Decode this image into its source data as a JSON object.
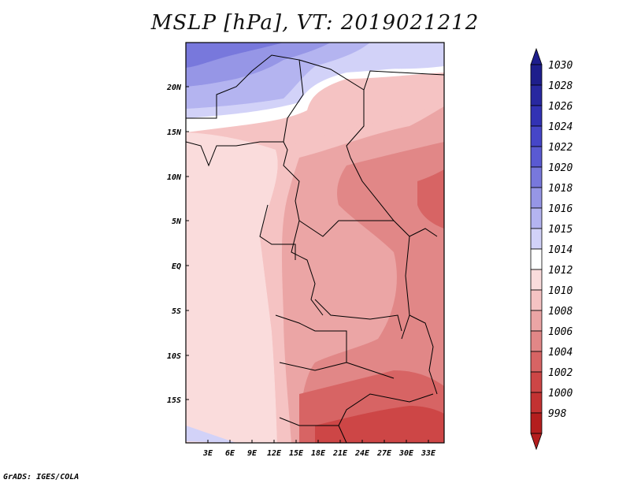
{
  "title": "MSLP [hPa], VT: 2019021212",
  "footer": "GrADS: IGES/COLA",
  "map": {
    "variable": "MSLP",
    "unit": "hPa",
    "valid_time": "2019021212",
    "lat_labels": [
      "20N",
      "15N",
      "10N",
      "5N",
      "EQ",
      "5S",
      "10S",
      "15S"
    ],
    "lon_labels": [
      "3E",
      "6E",
      "9E",
      "12E",
      "15E",
      "18E",
      "21E",
      "24E",
      "27E",
      "30E",
      "33E"
    ]
  },
  "colorbar": {
    "levels": [
      "1030",
      "1028",
      "1026",
      "1024",
      "1022",
      "1020",
      "1018",
      "1016",
      "1015",
      "1014",
      "1012",
      "1010",
      "1008",
      "1006",
      "1004",
      "1002",
      "1000",
      "998"
    ],
    "colors": [
      "#1e1e8c",
      "#2828a0",
      "#3232b4",
      "#4646c8",
      "#5a5ad2",
      "#7878dc",
      "#9696e6",
      "#b4b4f0",
      "#d2d2f8",
      "#ffffff",
      "#fadcdc",
      "#f5c3c3",
      "#eba5a5",
      "#e18787",
      "#d76464",
      "#cd4646",
      "#c33232",
      "#b41e1e"
    ]
  }
}
